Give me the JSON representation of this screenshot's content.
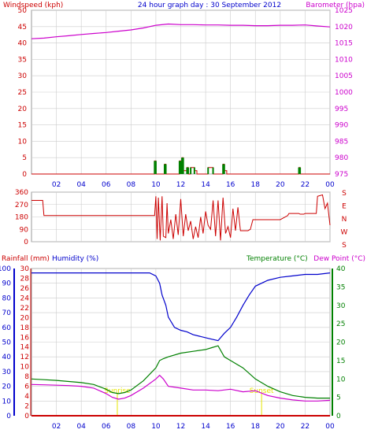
{
  "chart_data": [
    {
      "type": "line",
      "title": "24 hour graph day : 30 September 2012",
      "left_axis_label": "Windspeed (kph)",
      "right_axis_label": "Barometer (hpa)",
      "left_ylim": [
        0,
        50
      ],
      "right_ylim": [
        975,
        1025
      ],
      "left_ticks": [
        0,
        5,
        10,
        15,
        20,
        25,
        30,
        35,
        40,
        45,
        50
      ],
      "right_ticks": [
        975,
        980,
        985,
        990,
        995,
        1000,
        1005,
        1010,
        1015,
        1020,
        1025
      ],
      "x_ticks": [
        "02",
        "04",
        "06",
        "08",
        "10",
        "12",
        "14",
        "16",
        "18",
        "20",
        "22",
        "00"
      ],
      "xlim": [
        0,
        24
      ],
      "grid": true,
      "series": [
        {
          "color": "#cc00cc",
          "axis": "right",
          "x": [
            0,
            1,
            2,
            3,
            4,
            5,
            6,
            7,
            8,
            9,
            10,
            11,
            12,
            13,
            14,
            15,
            16,
            17,
            18,
            19,
            20,
            21,
            22,
            23,
            24
          ],
          "values": [
            1016.3,
            1016.5,
            1016.9,
            1017.2,
            1017.6,
            1017.9,
            1018.2,
            1018.6,
            1019.0,
            1019.6,
            1020.4,
            1020.8,
            1020.6,
            1020.6,
            1020.5,
            1020.5,
            1020.4,
            1020.4,
            1020.3,
            1020.3,
            1020.4,
            1020.4,
            1020.5,
            1020.2,
            1019.9
          ]
        },
        {
          "color": "#cc0000",
          "axis": "left",
          "x": [
            0,
            9.9,
            9.9,
            10,
            10,
            10.7,
            10.7,
            10.8,
            10.8,
            11.9,
            11.9,
            12.0,
            12.0,
            12.1,
            12.1,
            12.2,
            12.2,
            12.5,
            12.5,
            12.6,
            12.6,
            12.8,
            12.8,
            13.1,
            13.1,
            13.3,
            13.3,
            14.2,
            14.2,
            14.6,
            14.6,
            15.4,
            15.4,
            15.5,
            15.5,
            15.7,
            15.7,
            21.5,
            21.5,
            21.6,
            21.6,
            24
          ],
          "values": [
            0,
            0,
            4,
            4,
            0,
            0,
            3,
            3,
            0,
            0,
            4,
            4,
            2,
            2,
            5,
            5,
            1,
            1,
            2,
            2,
            0,
            0,
            2,
            2,
            1,
            1,
            0,
            0,
            2,
            2,
            0,
            0,
            3,
            3,
            1,
            1,
            0,
            0,
            2,
            2,
            0,
            0
          ]
        },
        {
          "color": "#008000",
          "axis": "left",
          "x": [
            9.9,
            10.0,
            10.7,
            10.8,
            11.9,
            12.0,
            12.1,
            12.2,
            12.5,
            12.6,
            12.8,
            13.1,
            14.2,
            14.6,
            15.4,
            15.5,
            21.5,
            21.6
          ],
          "values": [
            4,
            4,
            3,
            3,
            4,
            4,
            5,
            5,
            2,
            2,
            2,
            2,
            2,
            2,
            3,
            3,
            2,
            2
          ]
        }
      ]
    },
    {
      "type": "line",
      "ylim": [
        0,
        360
      ],
      "left_ticks": [
        0,
        90,
        180,
        270,
        360
      ],
      "right_labels": [
        "S",
        "E",
        "N",
        "W",
        "S"
      ],
      "xlim": [
        0,
        24
      ],
      "x_ticks": [
        "02",
        "04",
        "06",
        "08",
        "10",
        "12",
        "14",
        "16",
        "18",
        "20",
        "22",
        "00"
      ],
      "grid": true,
      "series": [
        {
          "color": "#cc0000",
          "x": [
            0,
            0.9,
            1.0,
            9.9,
            10.0,
            10.1,
            10.2,
            10.35,
            10.5,
            10.6,
            10.8,
            10.9,
            11.0,
            11.2,
            11.4,
            11.6,
            11.8,
            12.0,
            12.2,
            12.4,
            12.6,
            12.8,
            13.0,
            13.2,
            13.4,
            13.6,
            13.8,
            14.0,
            14.2,
            14.4,
            14.6,
            14.8,
            15.0,
            15.2,
            15.4,
            15.6,
            15.8,
            16.0,
            16.2,
            16.4,
            16.6,
            16.8,
            17.0,
            17.2,
            17.4,
            17.6,
            17.8,
            18.0,
            19.0,
            20.0,
            20.6,
            20.7,
            21.0,
            21.5,
            21.6,
            21.9,
            22.0,
            22.9,
            23.0,
            23.4,
            23.6,
            23.8,
            24.0
          ],
          "values": [
            300,
            300,
            190,
            190,
            330,
            20,
            320,
            10,
            330,
            40,
            30,
            280,
            60,
            160,
            20,
            200,
            50,
            310,
            40,
            200,
            80,
            150,
            20,
            110,
            30,
            180,
            60,
            220,
            120,
            90,
            300,
            40,
            300,
            10,
            320,
            60,
            110,
            30,
            240,
            80,
            250,
            80,
            80,
            80,
            80,
            90,
            160,
            160,
            160,
            160,
            190,
            205,
            205,
            205,
            200,
            200,
            205,
            205,
            330,
            340,
            240,
            280,
            120
          ]
        }
      ]
    },
    {
      "type": "line",
      "left_axis_label": "Rainfall (mm)",
      "left_axis_label_2": "Humidity (%)",
      "right_axis_label": "Temperature (°C)",
      "right_axis_label_2": "Dew Point (°C)",
      "humidity_ylim": [
        0,
        100
      ],
      "humidity_ticks": [
        0,
        10,
        20,
        30,
        40,
        50,
        60,
        70,
        80,
        90,
        100
      ],
      "rain_ylim": [
        0,
        30
      ],
      "rain_ticks": [
        0,
        2,
        4,
        6,
        8,
        10,
        12,
        14,
        16,
        18,
        20,
        22,
        24,
        26,
        28,
        30
      ],
      "temp_ylim": [
        0,
        40
      ],
      "temp_ticks": [
        0,
        5,
        10,
        15,
        20,
        25,
        30,
        35,
        40
      ],
      "xlim": [
        0,
        24
      ],
      "x_ticks": [
        "02",
        "04",
        "06",
        "08",
        "10",
        "12",
        "14",
        "16",
        "18",
        "20",
        "22",
        "00"
      ],
      "grid": true,
      "annotations": [
        {
          "text": "Sunrise",
          "x": 6.9,
          "color": "#e6e600"
        },
        {
          "text": "Sunset",
          "x": 18.5,
          "color": "#e6e600"
        }
      ],
      "series": [
        {
          "color": "#0000cc",
          "axis": "humidity",
          "x": [
            0,
            2,
            4,
            6,
            8,
            9.5,
            10.0,
            10.3,
            10.5,
            10.8,
            11.0,
            11.5,
            12.0,
            12.5,
            13.0,
            13.5,
            14.0,
            14.5,
            15.0,
            15.5,
            16.0,
            16.5,
            17.0,
            17.5,
            18.0,
            19.0,
            20.0,
            21.0,
            22.0,
            23.0,
            24.0
          ],
          "values": [
            97,
            97,
            97,
            97,
            97,
            97,
            95,
            90,
            82,
            75,
            67,
            60,
            58,
            57,
            55,
            54,
            53,
            52,
            51,
            56,
            60,
            67,
            75,
            82,
            88,
            92,
            94,
            95,
            96,
            96,
            97
          ]
        },
        {
          "color": "#008000",
          "axis": "temp",
          "x": [
            0,
            1,
            2,
            3,
            4,
            5,
            6,
            6.5,
            7,
            7.5,
            8,
            9,
            10,
            10.3,
            10.6,
            11,
            12,
            13,
            14,
            14.5,
            15,
            15.5,
            16,
            17,
            18,
            19,
            20,
            21,
            22,
            23,
            24
          ],
          "values": [
            10,
            9.8,
            9.6,
            9.3,
            9.0,
            8.5,
            7.2,
            6.3,
            6.0,
            6.3,
            7.0,
            9.5,
            13,
            15,
            15.5,
            16,
            17,
            17.5,
            18,
            18.5,
            19,
            16,
            15,
            13,
            10,
            8,
            6.5,
            5.5,
            5,
            4.8,
            4.8
          ]
        },
        {
          "color": "#cc00cc",
          "axis": "temp",
          "x": [
            0,
            1,
            2,
            3,
            4,
            5,
            6,
            6.5,
            7,
            7.5,
            8,
            9,
            10,
            10.3,
            10.6,
            11,
            12,
            13,
            14,
            15,
            16,
            17,
            18,
            19,
            20,
            21,
            22,
            23,
            24
          ],
          "values": [
            8.5,
            8.4,
            8.3,
            8.2,
            8.0,
            7.5,
            6.0,
            5.0,
            4.5,
            4.8,
            5.5,
            7.5,
            10,
            11,
            10,
            8,
            7.5,
            7,
            7,
            6.8,
            7.2,
            6.5,
            6.8,
            5.5,
            4.8,
            4.3,
            4.0,
            4.0,
            4.2
          ]
        },
        {
          "color": "#cc0000",
          "axis": "rain",
          "x": [
            0,
            24
          ],
          "values": [
            0,
            0
          ]
        }
      ]
    }
  ]
}
